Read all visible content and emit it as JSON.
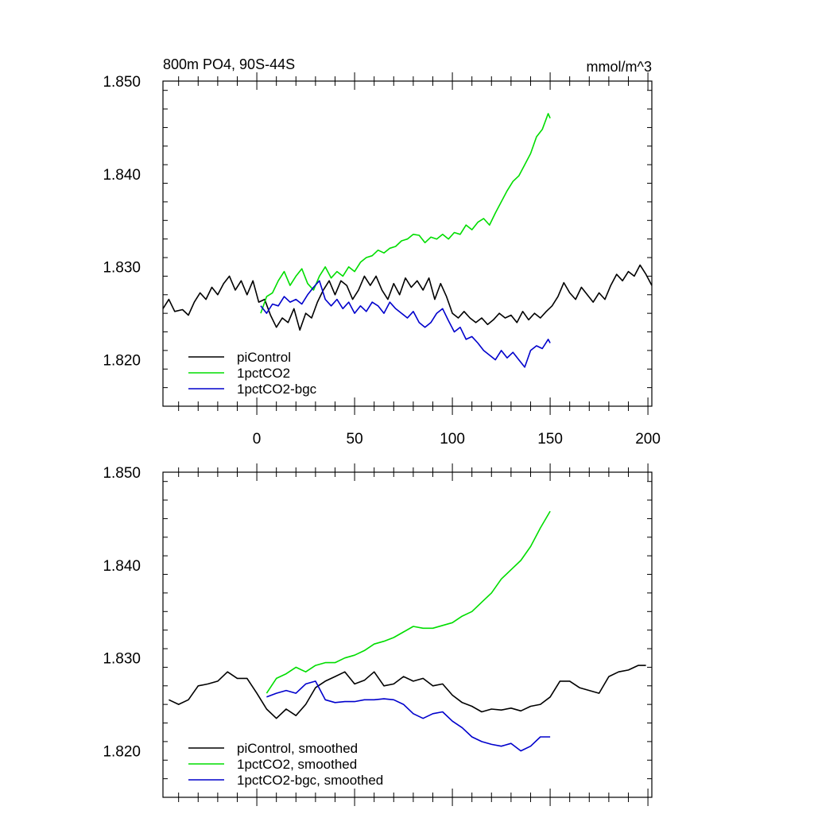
{
  "chart_data": [
    {
      "type": "line",
      "title": "800m PO4, 90S-44S",
      "units": "mmol/m^3",
      "xlabel": "",
      "ylabel": "",
      "xlim": [
        -48,
        202
      ],
      "ylim": [
        1.815,
        1.85
      ],
      "xticks": [
        0,
        50,
        100,
        150,
        200
      ],
      "xtick_labels": [
        "0",
        "50",
        "100",
        "150",
        "200"
      ],
      "yticks": [
        1.82,
        1.83,
        1.84,
        1.85
      ],
      "ytick_labels": [
        "1.820",
        "1.830",
        "1.840",
        "1.850"
      ],
      "show_xtick_labels": true,
      "legend_position": "bottom-left",
      "series": [
        {
          "name": "piControl",
          "color": "#000000",
          "x": [
            -48,
            -45,
            -42,
            -38,
            -35,
            -32,
            -29,
            -26,
            -23,
            -20,
            -17,
            -14,
            -11,
            -8,
            -5,
            -2,
            1,
            4,
            7,
            10,
            13,
            16,
            19,
            22,
            25,
            28,
            31,
            34,
            37,
            40,
            43,
            46,
            49,
            52,
            55,
            58,
            61,
            64,
            67,
            70,
            73,
            76,
            79,
            82,
            85,
            88,
            91,
            94,
            97,
            100,
            103,
            106,
            109,
            112,
            115,
            118,
            121,
            124,
            127,
            130,
            133,
            136,
            139,
            142,
            145,
            148,
            151,
            154,
            157,
            160,
            163,
            166,
            169,
            172,
            175,
            178,
            181,
            184,
            187,
            190,
            193,
            196,
            199,
            202
          ],
          "y": [
            1.8255,
            1.8265,
            1.8252,
            1.8254,
            1.8248,
            1.8262,
            1.8272,
            1.8265,
            1.8278,
            1.827,
            1.8282,
            1.829,
            1.8275,
            1.8285,
            1.827,
            1.8285,
            1.8262,
            1.8265,
            1.8248,
            1.8235,
            1.8245,
            1.824,
            1.8255,
            1.8232,
            1.825,
            1.8245,
            1.8262,
            1.8275,
            1.8285,
            1.827,
            1.8285,
            1.828,
            1.8265,
            1.8275,
            1.829,
            1.828,
            1.829,
            1.8275,
            1.8265,
            1.8282,
            1.827,
            1.8288,
            1.8278,
            1.8285,
            1.8275,
            1.8288,
            1.8265,
            1.8282,
            1.8268,
            1.825,
            1.8245,
            1.8252,
            1.8245,
            1.824,
            1.8245,
            1.8238,
            1.8243,
            1.825,
            1.8245,
            1.8248,
            1.824,
            1.8252,
            1.8243,
            1.825,
            1.8245,
            1.8252,
            1.8258,
            1.8268,
            1.8283,
            1.8272,
            1.8265,
            1.8278,
            1.827,
            1.8262,
            1.8272,
            1.8265,
            1.828,
            1.8292,
            1.8285,
            1.8295,
            1.829,
            1.8302,
            1.8292,
            1.828
          ]
        },
        {
          "name": "1pctCO2",
          "color": "#00dd00",
          "x": [
            2,
            5,
            8,
            11,
            14,
            17,
            20,
            23,
            26,
            29,
            32,
            35,
            38,
            41,
            44,
            47,
            50,
            53,
            56,
            59,
            62,
            65,
            68,
            71,
            74,
            77,
            80,
            83,
            86,
            89,
            92,
            95,
            98,
            101,
            104,
            107,
            110,
            113,
            116,
            119,
            122,
            125,
            128,
            131,
            134,
            137,
            140,
            143,
            146,
            149,
            150
          ],
          "y": [
            1.825,
            1.8268,
            1.8272,
            1.8285,
            1.8295,
            1.828,
            1.829,
            1.8298,
            1.8282,
            1.8275,
            1.829,
            1.83,
            1.8288,
            1.8295,
            1.829,
            1.83,
            1.8295,
            1.8305,
            1.831,
            1.8312,
            1.8318,
            1.8315,
            1.832,
            1.8322,
            1.8328,
            1.833,
            1.8335,
            1.8334,
            1.8326,
            1.8332,
            1.833,
            1.8335,
            1.833,
            1.8337,
            1.8335,
            1.8345,
            1.834,
            1.8348,
            1.8352,
            1.8345,
            1.8358,
            1.837,
            1.8382,
            1.8392,
            1.8398,
            1.841,
            1.8422,
            1.844,
            1.8448,
            1.8465,
            1.846
          ]
        },
        {
          "name": "1pctCO2-bgc",
          "color": "#0000cc",
          "x": [
            2,
            5,
            8,
            11,
            14,
            17,
            20,
            23,
            26,
            29,
            32,
            35,
            38,
            41,
            44,
            47,
            50,
            53,
            56,
            59,
            62,
            65,
            68,
            71,
            74,
            77,
            80,
            83,
            86,
            89,
            92,
            95,
            98,
            101,
            104,
            107,
            110,
            113,
            116,
            119,
            122,
            125,
            128,
            131,
            134,
            137,
            140,
            143,
            146,
            149,
            150
          ],
          "y": [
            1.8258,
            1.825,
            1.826,
            1.8258,
            1.8268,
            1.8262,
            1.8265,
            1.826,
            1.827,
            1.8278,
            1.8285,
            1.8265,
            1.8258,
            1.8265,
            1.8255,
            1.8262,
            1.825,
            1.8258,
            1.8252,
            1.8262,
            1.8258,
            1.825,
            1.8262,
            1.8255,
            1.825,
            1.8245,
            1.8252,
            1.824,
            1.8235,
            1.824,
            1.825,
            1.8255,
            1.8242,
            1.823,
            1.8235,
            1.8222,
            1.8225,
            1.8218,
            1.821,
            1.8205,
            1.82,
            1.821,
            1.8202,
            1.8208,
            1.82,
            1.8192,
            1.821,
            1.8215,
            1.8212,
            1.8222,
            1.8218
          ]
        }
      ]
    },
    {
      "type": "line",
      "title": "",
      "xlabel": "",
      "ylabel": "",
      "xlim": [
        -48,
        202
      ],
      "ylim": [
        1.815,
        1.85
      ],
      "xticks": [
        0,
        50,
        100,
        150,
        200
      ],
      "yticks": [
        1.82,
        1.83,
        1.84,
        1.85
      ],
      "ytick_labels": [
        "1.820",
        "1.830",
        "1.840",
        "1.850"
      ],
      "show_xtick_labels": false,
      "legend_position": "bottom-left",
      "series": [
        {
          "name": "piControl, smoothed",
          "color": "#000000",
          "x": [
            -45,
            -40,
            -35,
            -30,
            -25,
            -20,
            -15,
            -10,
            -5,
            0,
            5,
            10,
            15,
            20,
            25,
            30,
            35,
            40,
            45,
            50,
            55,
            60,
            65,
            70,
            75,
            80,
            85,
            90,
            95,
            100,
            105,
            110,
            115,
            120,
            125,
            130,
            135,
            140,
            145,
            150,
            155,
            160,
            165,
            170,
            175,
            180,
            185,
            190,
            195,
            199
          ],
          "y": [
            1.8255,
            1.825,
            1.8255,
            1.827,
            1.8272,
            1.8275,
            1.8285,
            1.8278,
            1.8278,
            1.8262,
            1.8245,
            1.8235,
            1.8245,
            1.8238,
            1.825,
            1.8268,
            1.8275,
            1.828,
            1.8285,
            1.8272,
            1.8276,
            1.8285,
            1.827,
            1.8272,
            1.828,
            1.8275,
            1.8278,
            1.827,
            1.8272,
            1.826,
            1.8252,
            1.8248,
            1.8242,
            1.8245,
            1.8244,
            1.8246,
            1.8243,
            1.8248,
            1.825,
            1.8258,
            1.8275,
            1.8275,
            1.8268,
            1.8265,
            1.8262,
            1.828,
            1.8285,
            1.8287,
            1.8292,
            1.8292
          ]
        },
        {
          "name": "1pctCO2, smoothed",
          "color": "#00dd00",
          "x": [
            5,
            10,
            15,
            20,
            25,
            30,
            35,
            40,
            45,
            50,
            55,
            60,
            65,
            70,
            75,
            80,
            85,
            90,
            95,
            100,
            105,
            110,
            115,
            120,
            125,
            130,
            135,
            140,
            145,
            150
          ],
          "y": [
            1.8262,
            1.8278,
            1.8283,
            1.829,
            1.8285,
            1.8292,
            1.8295,
            1.8295,
            1.83,
            1.8303,
            1.8308,
            1.8315,
            1.8318,
            1.8322,
            1.8328,
            1.8334,
            1.8332,
            1.8332,
            1.8335,
            1.8338,
            1.8345,
            1.835,
            1.836,
            1.837,
            1.8385,
            1.8395,
            1.8405,
            1.842,
            1.844,
            1.8458
          ]
        },
        {
          "name": "1pctCO2-bgc, smoothed",
          "color": "#0000cc",
          "x": [
            5,
            10,
            15,
            20,
            25,
            30,
            35,
            40,
            45,
            50,
            55,
            60,
            65,
            70,
            75,
            80,
            85,
            90,
            95,
            100,
            105,
            110,
            115,
            120,
            125,
            130,
            135,
            140,
            145,
            150
          ],
          "y": [
            1.8258,
            1.8262,
            1.8265,
            1.8262,
            1.8272,
            1.8275,
            1.8255,
            1.8252,
            1.8253,
            1.8253,
            1.8255,
            1.8255,
            1.8256,
            1.8255,
            1.825,
            1.824,
            1.8235,
            1.824,
            1.8242,
            1.8232,
            1.8225,
            1.8215,
            1.821,
            1.8207,
            1.8205,
            1.8208,
            1.82,
            1.8205,
            1.8215,
            1.8215
          ]
        }
      ]
    }
  ]
}
